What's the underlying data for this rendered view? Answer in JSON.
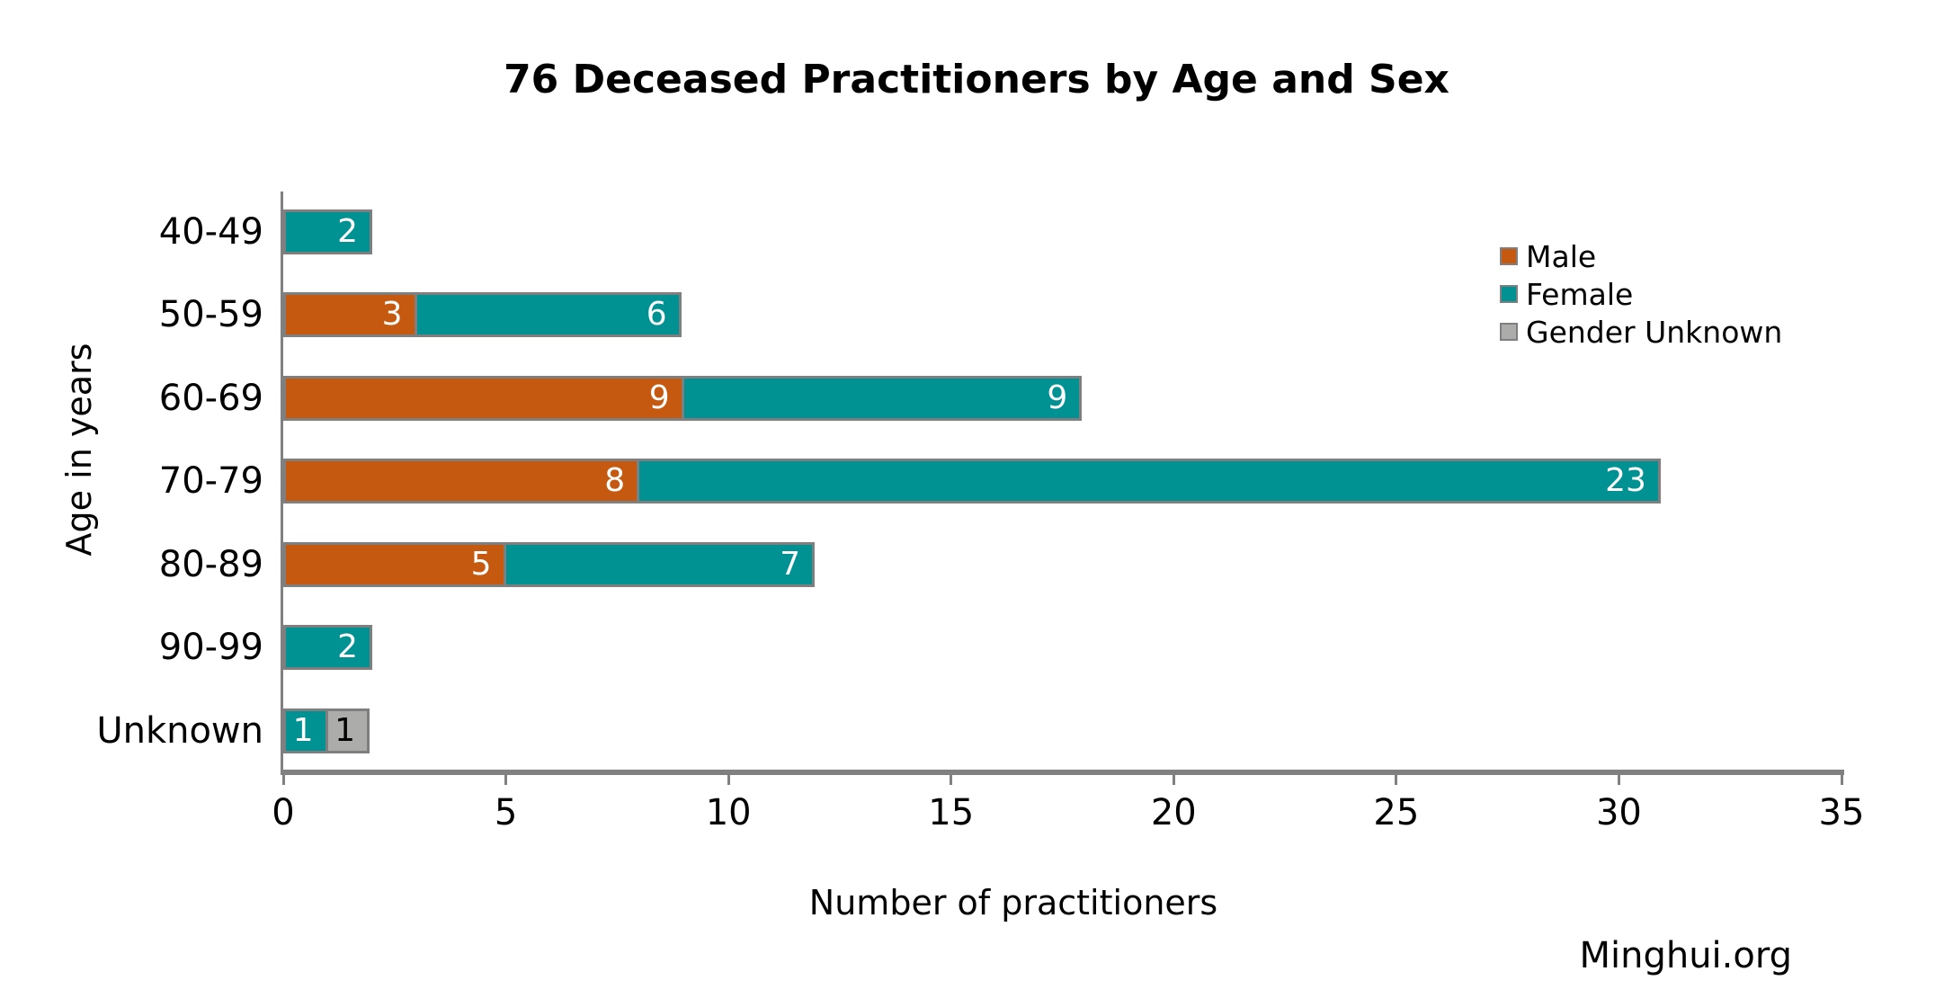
{
  "watermark": "Minghui.org",
  "chart_data": {
    "type": "bar",
    "orientation": "horizontal",
    "stacked": true,
    "title": "76 Deceased Practitioners by Age and Sex",
    "xlabel": "Number of practitioners",
    "ylabel": "Age in years",
    "xlim": [
      0,
      35
    ],
    "xticks": [
      0,
      5,
      10,
      15,
      20,
      25,
      30,
      35
    ],
    "grid": false,
    "legend_position": "upper-right",
    "axis_color": "#808080",
    "bar_border_color": "#7F7F7F",
    "categories": [
      "40-49",
      "50-59",
      "60-69",
      "70-79",
      "80-89",
      "90-99",
      "Unknown"
    ],
    "series": [
      {
        "name": "Male",
        "color": "#C4590F",
        "label_color": "#FFFFFF",
        "values": [
          0,
          3,
          9,
          8,
          5,
          0,
          0
        ]
      },
      {
        "name": "Female",
        "color": "#009193",
        "label_color": "#FFFFFF",
        "values": [
          2,
          6,
          9,
          23,
          7,
          2,
          1
        ]
      },
      {
        "name": "Gender Unknown",
        "color": "#ACACAB",
        "label_color": "#000000",
        "values": [
          0,
          0,
          0,
          0,
          0,
          0,
          1
        ]
      }
    ]
  }
}
